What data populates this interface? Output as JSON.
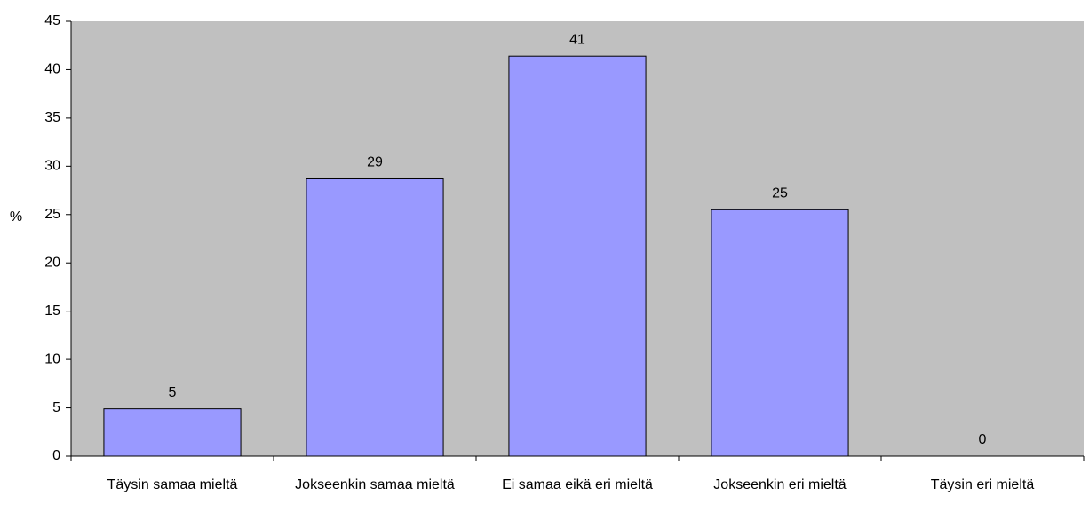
{
  "chart_data": {
    "type": "bar",
    "ylabel": "%",
    "categories": [
      "Täysin samaa mieltä",
      "Jokseenkin samaa mieltä",
      "Ei samaa eikä eri mieltä",
      "Jokseenkin eri mieltä",
      "Täysin eri mieltä"
    ],
    "values": [
      4.9,
      28.7,
      41.4,
      25.5,
      0
    ],
    "value_labels": [
      "5",
      "29",
      "41",
      "25",
      "0"
    ],
    "color": "#9999ff",
    "plot_background": "#c0c0c0",
    "ylim": [
      0,
      45
    ],
    "yticks": [
      0,
      5,
      10,
      15,
      20,
      25,
      30,
      35,
      40,
      45
    ],
    "grid": false
  }
}
